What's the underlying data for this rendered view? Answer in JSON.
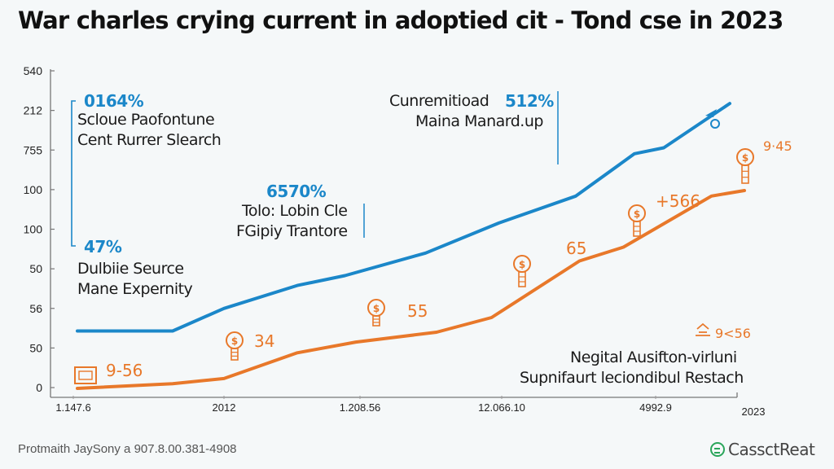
{
  "chart_data": {
    "type": "line",
    "title": "War charles crying current in adoptied cit - Tond cse in 2023",
    "xlabel": "",
    "ylabel": "",
    "y_tick_labels": [
      "540",
      "212",
      "755",
      "100",
      "100",
      "50",
      "56",
      "50",
      "0"
    ],
    "x_tick_labels": [
      "1.147.6",
      "2012",
      "1.208.56",
      "12.066.10",
      "4992.9",
      "2023"
    ],
    "x_index_range": [
      0,
      10
    ],
    "y_index_range": [
      0,
      8.3
    ],
    "grid": false,
    "legend": "none",
    "series": [
      {
        "name": "blue-series",
        "color": "#1b87c9",
        "x": [
          0,
          1.3,
          2.0,
          3.0,
          3.65,
          4.75,
          5.75,
          6.8,
          7.6,
          8.0,
          8.9
        ],
        "values": [
          1.45,
          1.45,
          2.02,
          2.6,
          2.85,
          3.42,
          4.18,
          4.86,
          5.93,
          6.08,
          7.2
        ]
      },
      {
        "name": "orange-series",
        "color": "#e8782a",
        "x": [
          0,
          1.3,
          2.0,
          3.0,
          3.8,
          4.9,
          5.65,
          6.85,
          7.45,
          8.65,
          9.1
        ],
        "values": [
          0.0,
          0.12,
          0.25,
          0.9,
          1.17,
          1.42,
          1.79,
          3.22,
          3.57,
          4.86,
          5.0
        ]
      }
    ],
    "annotations": [
      {
        "pct": "0164%",
        "lines": [
          "Scloue Paofontune",
          "Cent Rurrer Slearch"
        ]
      },
      {
        "pct": "47%",
        "lines": [
          "Dulbiie Seurce",
          "Mane Expernity"
        ]
      },
      {
        "pct": "6570%",
        "lines": [
          "Tolo: Lobin Cle",
          "FGipiy Trantore"
        ]
      },
      {
        "prefix": "Cunremitioad",
        "pct": "512%",
        "lines": [
          "Maina Manard.up"
        ]
      },
      {
        "lines": [
          "Negital Ausifton-virluni",
          "Supnifaurt leciondibul Restach"
        ]
      }
    ],
    "point_labels": [
      "9-56",
      "34",
      "55",
      "65",
      "+566",
      "9·45",
      "9<56"
    ]
  },
  "footer": {
    "source": "Protmaith JaySony a 907.8.00.381-4908",
    "brand": "CassctReat"
  }
}
